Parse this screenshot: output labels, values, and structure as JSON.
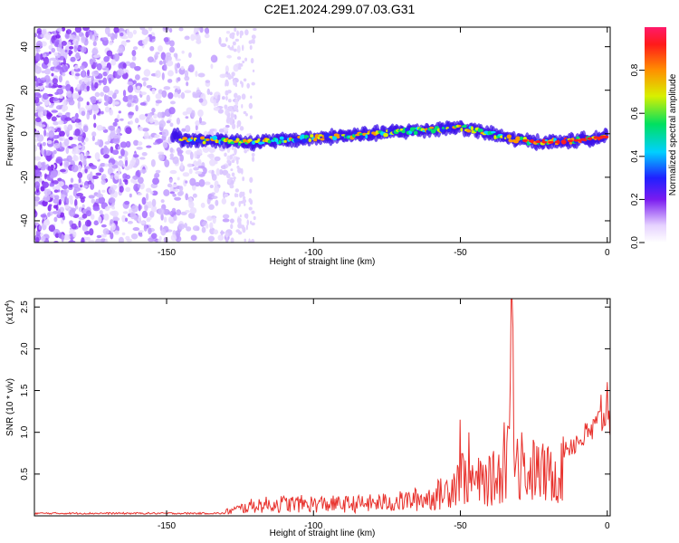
{
  "title": "C2E1.2024.299.07.03.G31",
  "chart_data": [
    {
      "type": "heatmap",
      "title": "C2E1.2024.299.07.03.G31",
      "xlabel": "Height of straight line (km)",
      "ylabel": "Frequency (Hz)",
      "xlim": [
        -195,
        1
      ],
      "ylim": [
        -50,
        49
      ],
      "xticks": [
        -150,
        -100,
        -50,
        0
      ],
      "yticks": [
        -40,
        -20,
        0,
        20,
        40
      ],
      "colorbar": {
        "label": "Normalized spectral amplitude",
        "range": [
          0.0,
          1.0
        ],
        "ticks": [
          "0.0",
          "0.2",
          "0.4",
          "0.6",
          "0.8"
        ]
      },
      "ridge": {
        "description_x_km": [
          -145,
          -130,
          -120,
          -110,
          -100,
          -90,
          -80,
          -70,
          -60,
          -50,
          -40,
          -30,
          -20,
          -10,
          0
        ],
        "center_hz": [
          -3,
          -3,
          -4,
          -3,
          -2,
          -1,
          0,
          1,
          2,
          3,
          0,
          -3,
          -4,
          -3,
          -1
        ]
      }
    },
    {
      "type": "line",
      "xlabel": "Height of straight line (km)",
      "ylabel": "SNR (10 * v/v)",
      "y_multiplier": "(x10",
      "y_multiplier_exp": "4",
      "y_multiplier_close": ")",
      "xlim": [
        -195,
        1
      ],
      "ylim": [
        0,
        2.6
      ],
      "xticks": [
        -150,
        -100,
        -50,
        0
      ],
      "yticks": [
        0.5,
        1.0,
        1.5,
        2.0,
        2.5
      ],
      "ytick_labels": [
        "0.5",
        "1.0",
        "1.5",
        "2.0",
        "2.5"
      ],
      "color": "#e8322d",
      "envelope_x": [
        -195,
        -140,
        -130,
        -125,
        -120,
        -110,
        -100,
        -90,
        -80,
        -70,
        -60,
        -55,
        -50,
        -45,
        -40,
        -35,
        -32,
        -30,
        -25,
        -20,
        -15,
        -10,
        -5,
        0,
        1
      ],
      "envelope_y": [
        0.04,
        0.04,
        0.08,
        0.15,
        0.22,
        0.25,
        0.25,
        0.24,
        0.26,
        0.3,
        0.38,
        0.5,
        0.85,
        0.7,
        0.72,
        0.95,
        2.6,
        0.9,
        0.95,
        0.85,
        0.95,
        1.05,
        1.2,
        1.45,
        1.35
      ],
      "peaks": [
        {
          "x": -32.5,
          "y": 2.6
        },
        {
          "x": -32,
          "y": 2.25
        },
        {
          "x": -50,
          "y": 1.15
        },
        {
          "x": -47,
          "y": 1.0
        },
        {
          "x": -35,
          "y": 1.12
        },
        {
          "x": -29,
          "y": 1.0
        },
        {
          "x": 0,
          "y": 1.6
        },
        {
          "x": -2,
          "y": 1.45
        }
      ]
    }
  ]
}
